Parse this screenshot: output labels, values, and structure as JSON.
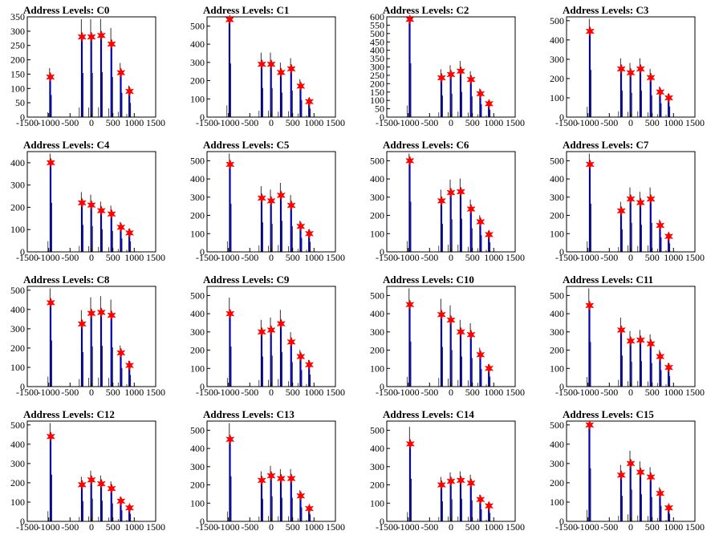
{
  "x_tick_labels": [
    "-1500",
    "-1000",
    "-500",
    "0",
    "500",
    "1000",
    "1500"
  ],
  "colors": {
    "histogram": "#0000ff",
    "outline": "#000000",
    "peak_marker": "#ff0000",
    "frame": "#000000"
  },
  "chart_data": [
    {
      "type": "histogram",
      "title": "Address Levels: C0",
      "xlim": [
        -1500,
        1500
      ],
      "ylim": [
        0,
        350
      ],
      "yticks": [
        0,
        50,
        100,
        150,
        200,
        250,
        300,
        350
      ],
      "peaks": [
        [
          -960,
          140
        ],
        [
          -220,
          280
        ],
        [
          0,
          280
        ],
        [
          230,
          285
        ],
        [
          470,
          255
        ],
        [
          690,
          155
        ],
        [
          890,
          90
        ]
      ]
    },
    {
      "type": "histogram",
      "title": "Address Levels: C1",
      "xlim": [
        -1500,
        1500
      ],
      "ylim": [
        0,
        550
      ],
      "yticks": [
        0,
        100,
        200,
        300,
        400,
        500
      ],
      "peaks": [
        [
          -970,
          535
        ],
        [
          -220,
          290
        ],
        [
          0,
          290
        ],
        [
          230,
          245
        ],
        [
          470,
          265
        ],
        [
          690,
          170
        ],
        [
          890,
          85
        ]
      ]
    },
    {
      "type": "histogram",
      "title": "Address Levels: C2",
      "xlim": [
        -1500,
        1500
      ],
      "ylim": [
        0,
        600
      ],
      "yticks": [
        0,
        50,
        100,
        150,
        200,
        250,
        300,
        350,
        400,
        450,
        500,
        550,
        600
      ],
      "peaks": [
        [
          -960,
          585
        ],
        [
          -220,
          235
        ],
        [
          0,
          255
        ],
        [
          230,
          275
        ],
        [
          470,
          225
        ],
        [
          690,
          140
        ],
        [
          890,
          80
        ]
      ]
    },
    {
      "type": "histogram",
      "title": "Address Levels: C3",
      "xlim": [
        -1500,
        1500
      ],
      "ylim": [
        0,
        520
      ],
      "yticks": [
        0,
        100,
        200,
        300,
        400,
        500
      ],
      "peaks": [
        [
          -950,
          445
        ],
        [
          -220,
          250
        ],
        [
          0,
          230
        ],
        [
          230,
          250
        ],
        [
          470,
          205
        ],
        [
          690,
          130
        ],
        [
          890,
          100
        ]
      ]
    },
    {
      "type": "histogram",
      "title": "Address Levels: C4",
      "xlim": [
        -1500,
        1500
      ],
      "ylim": [
        0,
        450
      ],
      "yticks": [
        0,
        100,
        200,
        300,
        400
      ],
      "peaks": [
        [
          -950,
          400
        ],
        [
          -220,
          220
        ],
        [
          0,
          210
        ],
        [
          230,
          185
        ],
        [
          470,
          170
        ],
        [
          690,
          110
        ],
        [
          890,
          85
        ]
      ]
    },
    {
      "type": "histogram",
      "title": "Address Levels: C5",
      "xlim": [
        -1500,
        1500
      ],
      "ylim": [
        0,
        550
      ],
      "yticks": [
        0,
        100,
        200,
        300,
        400,
        500
      ],
      "peaks": [
        [
          -960,
          480
        ],
        [
          -220,
          295
        ],
        [
          0,
          280
        ],
        [
          230,
          310
        ],
        [
          470,
          255
        ],
        [
          690,
          140
        ],
        [
          890,
          100
        ]
      ]
    },
    {
      "type": "histogram",
      "title": "Address Levels: C6",
      "xlim": [
        -1500,
        1500
      ],
      "ylim": [
        0,
        550
      ],
      "yticks": [
        0,
        100,
        200,
        300,
        400,
        500
      ],
      "peaks": [
        [
          -960,
          500
        ],
        [
          -220,
          280
        ],
        [
          0,
          325
        ],
        [
          230,
          330
        ],
        [
          470,
          235
        ],
        [
          690,
          165
        ],
        [
          890,
          95
        ]
      ]
    },
    {
      "type": "histogram",
      "title": "Address Levels: C7",
      "xlim": [
        -1500,
        1500
      ],
      "ylim": [
        0,
        550
      ],
      "yticks": [
        0,
        100,
        200,
        300,
        400,
        500
      ],
      "peaks": [
        [
          -950,
          480
        ],
        [
          -220,
          225
        ],
        [
          0,
          290
        ],
        [
          230,
          270
        ],
        [
          470,
          290
        ],
        [
          690,
          145
        ],
        [
          890,
          85
        ]
      ]
    },
    {
      "type": "histogram",
      "title": "Address Levels: C8",
      "xlim": [
        -1500,
        1500
      ],
      "ylim": [
        0,
        520
      ],
      "yticks": [
        0,
        100,
        200,
        300,
        400,
        500
      ],
      "peaks": [
        [
          -950,
          435
        ],
        [
          -220,
          325
        ],
        [
          0,
          380
        ],
        [
          230,
          385
        ],
        [
          470,
          370
        ],
        [
          690,
          175
        ],
        [
          890,
          110
        ]
      ]
    },
    {
      "type": "histogram",
      "title": "Address Levels: C9",
      "xlim": [
        -1500,
        1500
      ],
      "ylim": [
        0,
        550
      ],
      "yticks": [
        0,
        100,
        200,
        300,
        400,
        500
      ],
      "peaks": [
        [
          -960,
          400
        ],
        [
          -220,
          300
        ],
        [
          0,
          310
        ],
        [
          230,
          345
        ],
        [
          470,
          245
        ],
        [
          690,
          165
        ],
        [
          890,
          120
        ]
      ]
    },
    {
      "type": "histogram",
      "title": "Address Levels: C10",
      "xlim": [
        -1500,
        1500
      ],
      "ylim": [
        0,
        550
      ],
      "yticks": [
        0,
        100,
        200,
        300,
        400,
        500
      ],
      "peaks": [
        [
          -960,
          450
        ],
        [
          -220,
          395
        ],
        [
          0,
          365
        ],
        [
          230,
          300
        ],
        [
          470,
          285
        ],
        [
          690,
          175
        ],
        [
          890,
          100
        ]
      ]
    },
    {
      "type": "histogram",
      "title": "Address Levels: C11",
      "xlim": [
        -1500,
        1500
      ],
      "ylim": [
        0,
        550
      ],
      "yticks": [
        0,
        100,
        200,
        300,
        400,
        500
      ],
      "peaks": [
        [
          -960,
          445
        ],
        [
          -220,
          310
        ],
        [
          0,
          250
        ],
        [
          230,
          255
        ],
        [
          470,
          235
        ],
        [
          690,
          165
        ],
        [
          890,
          105
        ]
      ]
    },
    {
      "type": "histogram",
      "title": "Address Levels: C12",
      "xlim": [
        -1500,
        1500
      ],
      "ylim": [
        0,
        520
      ],
      "yticks": [
        0,
        100,
        200,
        300,
        400,
        500
      ],
      "peaks": [
        [
          -950,
          440
        ],
        [
          -220,
          190
        ],
        [
          0,
          215
        ],
        [
          230,
          195
        ],
        [
          470,
          170
        ],
        [
          690,
          105
        ],
        [
          890,
          70
        ]
      ]
    },
    {
      "type": "histogram",
      "title": "Address Levels: C13",
      "xlim": [
        -1500,
        1500
      ],
      "ylim": [
        0,
        550
      ],
      "yticks": [
        0,
        100,
        200,
        300,
        400,
        500
      ],
      "peaks": [
        [
          -960,
          450
        ],
        [
          -220,
          225
        ],
        [
          0,
          250
        ],
        [
          230,
          235
        ],
        [
          470,
          235
        ],
        [
          690,
          140
        ],
        [
          890,
          70
        ]
      ]
    },
    {
      "type": "histogram",
      "title": "Address Levels: C14",
      "xlim": [
        -1500,
        1500
      ],
      "ylim": [
        0,
        550
      ],
      "yticks": [
        0,
        100,
        200,
        300,
        400,
        500
      ],
      "peaks": [
        [
          -950,
          425
        ],
        [
          -220,
          200
        ],
        [
          0,
          220
        ],
        [
          230,
          225
        ],
        [
          470,
          210
        ],
        [
          690,
          120
        ],
        [
          890,
          85
        ]
      ]
    },
    {
      "type": "histogram",
      "title": "Address Levels: C15",
      "xlim": [
        -1500,
        1500
      ],
      "ylim": [
        0,
        520
      ],
      "yticks": [
        0,
        100,
        200,
        300,
        400,
        500
      ],
      "peaks": [
        [
          -960,
          500
        ],
        [
          -220,
          240
        ],
        [
          0,
          300
        ],
        [
          230,
          255
        ],
        [
          470,
          230
        ],
        [
          690,
          145
        ],
        [
          890,
          70
        ]
      ]
    }
  ]
}
